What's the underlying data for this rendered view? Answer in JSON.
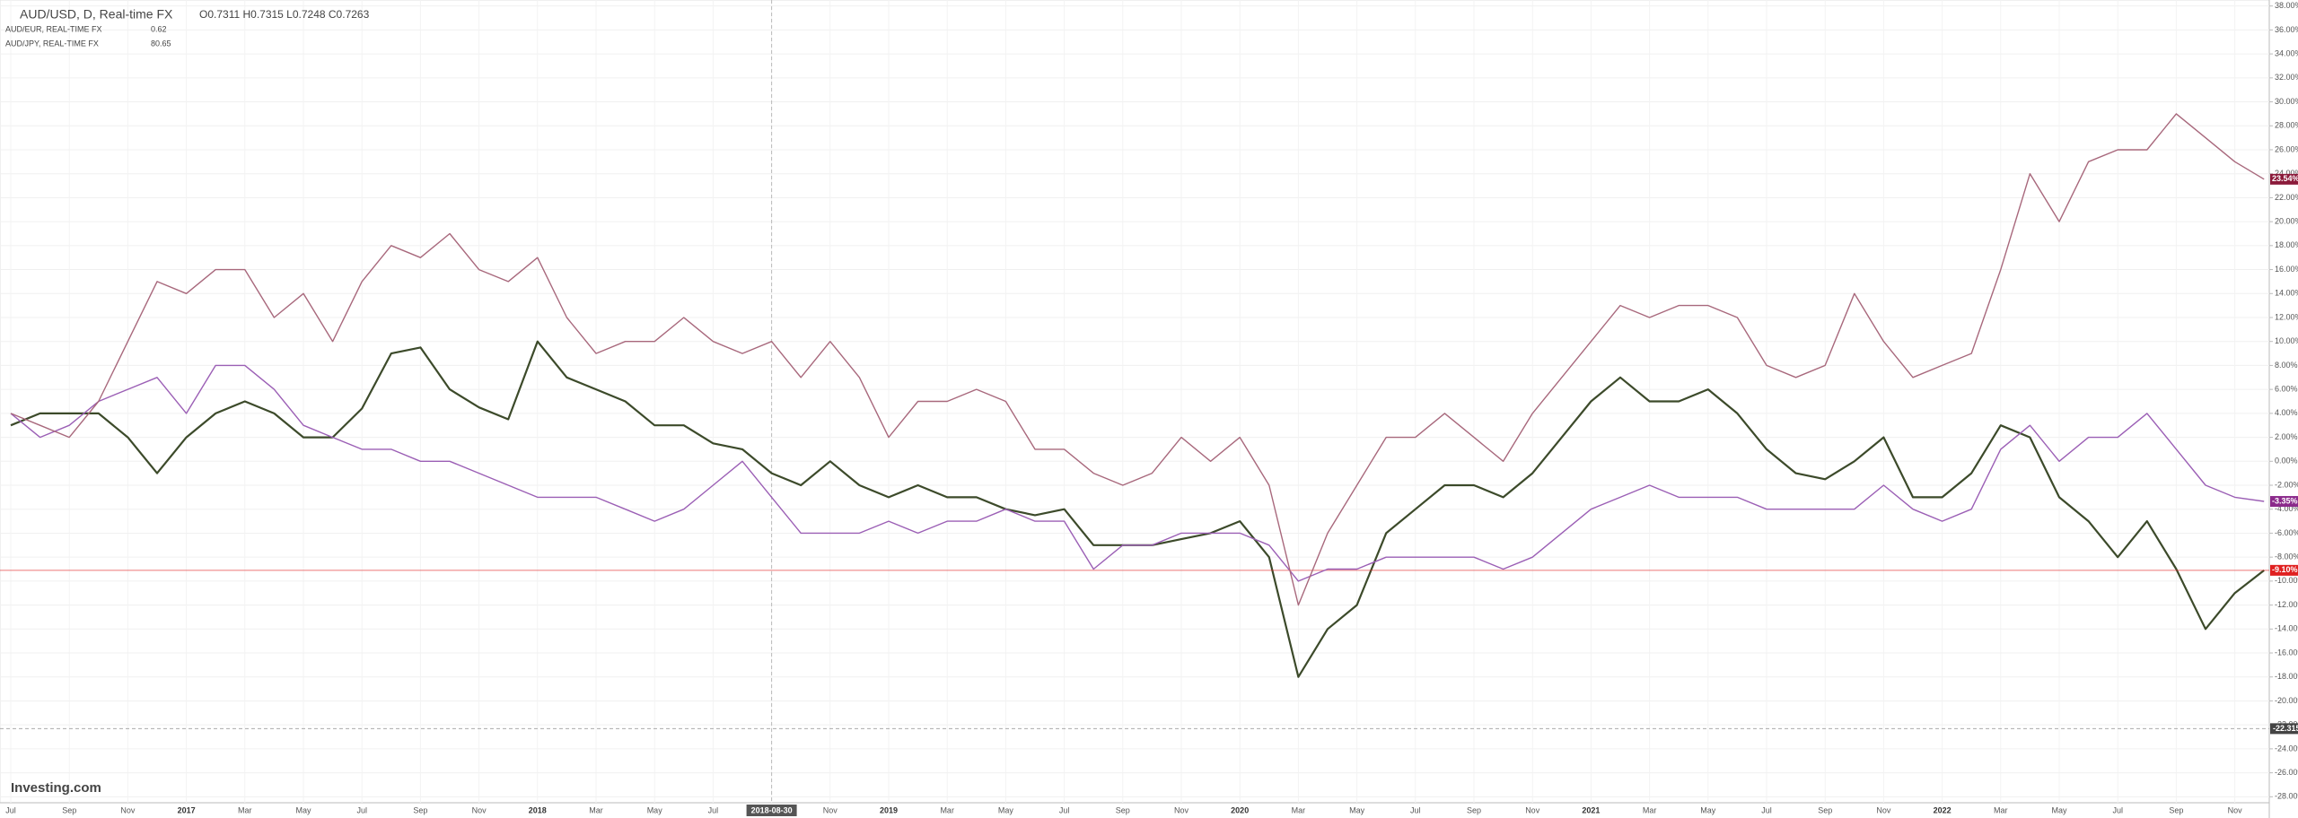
{
  "chart_data": {
    "type": "line",
    "title": "AUD/USD, D, Real-time FX",
    "ohlc": "O0.7311 H0.7315 L0.7248 C0.7263",
    "watermark": "Investing.com",
    "categories": [
      "Jul",
      null,
      "Sep",
      null,
      "Nov",
      null,
      "2017",
      null,
      "Mar",
      null,
      "May",
      null,
      "Jul",
      null,
      "Sep",
      null,
      "Nov",
      null,
      "2018",
      null,
      "Mar",
      null,
      "May",
      null,
      "Jul",
      null,
      "2018-08-30",
      null,
      "Nov",
      null,
      "2019",
      null,
      "Mar",
      null,
      "May",
      null,
      "Jul",
      null,
      "Sep",
      null,
      "Nov",
      null,
      "2020",
      null,
      "Mar",
      null,
      "May",
      null,
      "Jul",
      null,
      "Sep",
      null,
      "Nov",
      null,
      "2021",
      null,
      "Mar",
      null,
      "May",
      null,
      "Jul",
      null,
      "Sep",
      null,
      "Nov",
      null,
      "2022",
      null,
      "Mar",
      null,
      "May",
      null,
      "Jul",
      null,
      "Sep",
      null,
      "Nov",
      null
    ],
    "series": [
      {
        "name": "AUD/USD, D, Real-time FX",
        "color": "#3c4a2a",
        "last_label": "-9.10%",
        "label_color": "#e02020",
        "values": [
          3,
          4,
          4,
          4,
          2,
          -1,
          2,
          4,
          5,
          4,
          2,
          2,
          4.4,
          9,
          9.5,
          6,
          4.5,
          3.5,
          10,
          7,
          6,
          5,
          3,
          3,
          1.5,
          1,
          -1,
          -2,
          0,
          -2,
          -3,
          -2,
          -3,
          -3,
          -4,
          -4.5,
          -4,
          -7,
          -7,
          -7,
          -6.5,
          -6,
          -5,
          -8,
          -18,
          -14,
          -12,
          -6,
          -4,
          -2,
          -2,
          -3,
          -1,
          2,
          5,
          7,
          5,
          5,
          6,
          4,
          1,
          -1,
          -1.5,
          0,
          2,
          -3,
          -3,
          -1,
          3,
          2,
          -3,
          -5,
          -8,
          -5,
          -9,
          -14,
          -11,
          -9.1
        ]
      },
      {
        "name": "AUD/EUR, REAL-TIME FX",
        "color": "#9b5fb5",
        "legend_value": "0.62",
        "last_label": "-3.35%",
        "label_color": "#8b2a8b",
        "values": [
          4,
          2,
          3,
          5,
          6,
          7,
          4,
          8,
          8,
          6,
          3,
          2,
          1,
          1,
          0,
          0,
          -1,
          -2,
          -3,
          -3,
          -3,
          -4,
          -5,
          -4,
          -2,
          0,
          -3,
          -6,
          -6,
          -6,
          -5,
          -6,
          -5,
          -5,
          -4,
          -5,
          -5,
          -9,
          -7,
          -7,
          -6,
          -6,
          -6,
          -7,
          -10,
          -9,
          -9,
          -8,
          -8,
          -8,
          -8,
          -9,
          -8,
          -6,
          -4,
          -3,
          -2,
          -3,
          -3,
          -3,
          -4,
          -4,
          -4,
          -4,
          -2,
          -4,
          -5,
          -4,
          1,
          3,
          0,
          2,
          2,
          4,
          1,
          -2,
          -3,
          -3.35
        ]
      },
      {
        "name": "AUD/JPY, REAL-TIME FX",
        "color": "#a8687c",
        "legend_value": "80.65",
        "last_label": "23.54%",
        "label_color": "#8b1a3a",
        "values": [
          4,
          3,
          2,
          5,
          10,
          15,
          14,
          16,
          16,
          12,
          14,
          10,
          15,
          18,
          17,
          19,
          16,
          15,
          17,
          12,
          9,
          10,
          10,
          12,
          10,
          9,
          10,
          7,
          10,
          7,
          2,
          5,
          5,
          6,
          5,
          1,
          1,
          -1,
          -2,
          -1,
          2,
          0,
          2,
          -2,
          -12,
          -6,
          -2,
          2,
          2,
          4,
          2,
          0,
          4,
          7,
          10,
          13,
          12,
          13,
          13,
          12,
          8,
          7,
          8,
          14,
          10,
          7,
          8,
          9,
          16,
          24,
          20,
          25,
          26,
          26,
          29,
          27,
          25,
          23.54
        ]
      }
    ],
    "crosshair": {
      "y_value": -22.315,
      "y_label": "-22.3150"
    },
    "ylim": [
      -28.5,
      38.5
    ],
    "yticks": [
      {
        "value": 38,
        "label": "38.00%"
      },
      {
        "value": 36,
        "label": "36.00%"
      },
      {
        "value": 34,
        "label": "34.00%"
      },
      {
        "value": 32,
        "label": "32.00%"
      },
      {
        "value": 30,
        "label": "30.00%"
      },
      {
        "value": 28,
        "label": "28.00%"
      },
      {
        "value": 26,
        "label": "26.00%"
      },
      {
        "value": 24,
        "label": "24.00%"
      },
      {
        "value": 22,
        "label": "22.00%"
      },
      {
        "value": 20,
        "label": "20.00%"
      },
      {
        "value": 18,
        "label": "18.00%"
      },
      {
        "value": 16,
        "label": "16.00%"
      },
      {
        "value": 14,
        "label": "14.00%"
      },
      {
        "value": 12,
        "label": "12.00%"
      },
      {
        "value": 10,
        "label": "10.00%"
      },
      {
        "value": 8,
        "label": "8.00%"
      },
      {
        "value": 6,
        "label": "6.00%"
      },
      {
        "value": 4,
        "label": "4.00%"
      },
      {
        "value": 2,
        "label": "2.00%"
      },
      {
        "value": 0,
        "label": "0.00%"
      },
      {
        "value": -2,
        "label": "-2.00%"
      },
      {
        "value": -4,
        "label": "-4.00%"
      },
      {
        "value": -6,
        "label": "-6.00%"
      },
      {
        "value": -8,
        "label": "-8.00%"
      },
      {
        "value": -10,
        "label": "-10.00%"
      },
      {
        "value": -12,
        "label": "-12.00%"
      },
      {
        "value": -14,
        "label": "-14.00%"
      },
      {
        "value": -16,
        "label": "-16.00%"
      },
      {
        "value": -18,
        "label": "-18.00%"
      },
      {
        "value": -20,
        "label": "-20.00%"
      },
      {
        "value": -22,
        "label": "-22.00%"
      },
      {
        "value": -24,
        "label": "-24.00%"
      },
      {
        "value": -26,
        "label": "-26.00%"
      },
      {
        "value": -28,
        "label": "-28.00%"
      }
    ],
    "grid": true
  }
}
